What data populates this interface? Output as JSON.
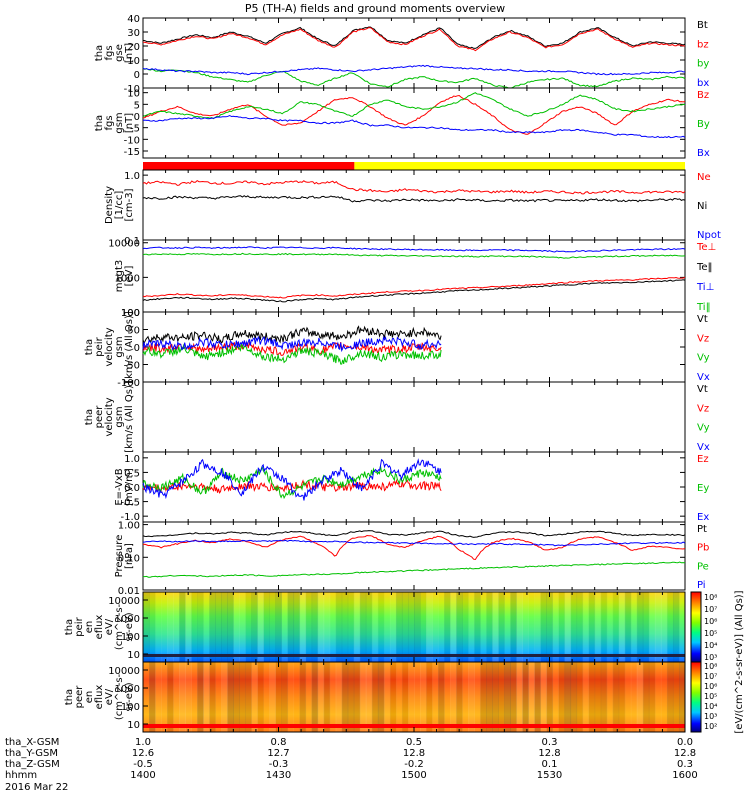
{
  "title": "P5 (TH-A) fields and ground moments overview",
  "date_label": "2016 Mar 22",
  "chart_data": [
    {
      "type": "line",
      "panel": "fgs_btotal",
      "ylabel": [
        "tha",
        "fgs",
        "gse",
        "[nT]"
      ],
      "ylim": [
        -10,
        40
      ],
      "yticks": [
        "40",
        "30",
        "20",
        "10",
        "0",
        "-10"
      ],
      "series": [
        {
          "name": "Bt",
          "color": "#000000",
          "values": [
            24,
            22,
            25,
            28,
            26,
            30,
            27,
            22,
            29,
            33,
            25,
            20,
            31,
            34,
            24,
            22,
            28,
            33,
            21,
            18,
            26,
            31,
            27,
            20,
            22,
            30,
            33,
            26,
            20,
            23,
            22,
            21
          ]
        },
        {
          "name": "bz",
          "color": "#ff0000",
          "values": [
            23,
            21,
            24,
            27,
            25,
            29,
            26,
            21,
            28,
            32,
            24,
            19,
            30,
            33,
            23,
            21,
            27,
            32,
            20,
            17,
            25,
            30,
            26,
            19,
            21,
            29,
            32,
            25,
            19,
            22,
            21,
            20
          ]
        },
        {
          "name": "by",
          "color": "#00c000",
          "values": [
            4,
            2,
            3,
            1,
            -2,
            -4,
            -6,
            -1,
            2,
            -5,
            -8,
            -3,
            1,
            -7,
            -9,
            -4,
            -2,
            -5,
            -6,
            -3,
            -8,
            -10,
            -6,
            -4,
            -3,
            -8,
            -9,
            -5,
            -3,
            -4,
            -2,
            -3
          ]
        },
        {
          "name": "bx",
          "color": "#0000ff",
          "values": [
            4,
            3,
            2,
            2,
            1,
            1,
            0,
            1,
            2,
            3,
            4,
            3,
            2,
            3,
            4,
            5,
            6,
            5,
            4,
            4,
            3,
            3,
            2,
            2,
            2,
            1,
            0,
            0,
            0,
            1,
            1,
            2
          ]
        }
      ]
    },
    {
      "type": "line",
      "panel": "fgs_gsm",
      "ylabel": [
        "tha",
        "fgs",
        "gsm",
        "[nT]"
      ],
      "ylim": [
        -18,
        12
      ],
      "yticks": [
        "10",
        "5",
        "0",
        "-5",
        "-10",
        "-15"
      ],
      "series": [
        {
          "name": "Bz",
          "color": "#ff0000",
          "values": [
            -1,
            2,
            4,
            1,
            0,
            3,
            5,
            0,
            -4,
            -3,
            2,
            7,
            8,
            4,
            -1,
            -4,
            0,
            6,
            9,
            5,
            0,
            -6,
            -8,
            -3,
            2,
            4,
            1,
            -4,
            2,
            5,
            7,
            6
          ]
        },
        {
          "name": "By",
          "color": "#00c000",
          "values": [
            0,
            2,
            1,
            0,
            -1,
            2,
            4,
            3,
            1,
            6,
            5,
            2,
            0,
            5,
            7,
            4,
            3,
            4,
            6,
            10,
            7,
            3,
            0,
            2,
            5,
            9,
            7,
            3,
            2,
            3,
            4,
            5
          ]
        },
        {
          "name": "Bx",
          "color": "#0000ff",
          "values": [
            -2,
            -2,
            -1,
            -1,
            -1,
            0,
            -1,
            -1,
            -2,
            -2,
            -3,
            -3,
            -2,
            -4,
            -4,
            -5,
            -5,
            -5,
            -6,
            -6,
            -6,
            -7,
            -7,
            -7,
            -6,
            -6,
            -7,
            -8,
            -8,
            -9,
            -9,
            -9
          ]
        }
      ]
    },
    {
      "type": "bar",
      "panel": "region_bar",
      "segments": [
        {
          "from": 0.0,
          "to": 0.39,
          "color": "#ff0000"
        },
        {
          "from": 0.39,
          "to": 1.0,
          "color": "#ffff00"
        }
      ]
    },
    {
      "type": "line",
      "panel": "density",
      "ylabel": [
        "Density",
        "[1/cc]",
        "[cm-3]"
      ],
      "yscale": "log",
      "ylim": [
        0.1,
        1.2
      ],
      "yticks": [
        "1.0",
        "0.1"
      ],
      "series": [
        {
          "name": "Ne",
          "color": "#ff0000",
          "values": [
            0.75,
            0.78,
            0.72,
            0.8,
            0.76,
            0.74,
            0.79,
            0.73,
            0.77,
            0.8,
            0.75,
            0.78,
            0.6,
            0.58,
            0.55,
            0.6,
            0.57,
            0.55,
            0.58,
            0.56,
            0.55,
            0.57,
            0.54,
            0.56,
            0.55,
            0.53,
            0.55,
            0.56,
            0.54,
            0.55,
            0.55,
            0.55
          ]
        },
        {
          "name": "Ni",
          "color": "#000000",
          "values": [
            0.45,
            0.44,
            0.46,
            0.45,
            0.44,
            0.46,
            0.47,
            0.45,
            0.46,
            0.45,
            0.46,
            0.47,
            0.4,
            0.41,
            0.4,
            0.42,
            0.41,
            0.4,
            0.42,
            0.41,
            0.4,
            0.41,
            0.4,
            0.41,
            0.4,
            0.41,
            0.42,
            0.41,
            0.4,
            0.41,
            0.42,
            0.42
          ]
        },
        {
          "name": "Npot",
          "color": "#0000ff",
          "values": []
        }
      ]
    },
    {
      "type": "line",
      "panel": "temperature",
      "ylabel": [
        "magt3",
        "[eV]"
      ],
      "yscale": "log",
      "ylim": [
        100,
        12000
      ],
      "yticks": [
        "10000",
        "1000",
        "100"
      ],
      "series": [
        {
          "name": "Te⊥",
          "color": "#ff0000",
          "values": [
            280,
            300,
            330,
            310,
            290,
            320,
            300,
            280,
            260,
            300,
            310,
            290,
            320,
            350,
            380,
            400,
            420,
            450,
            480,
            500,
            530,
            560,
            600,
            650,
            700,
            750,
            800,
            820,
            850,
            900,
            950,
            980
          ]
        },
        {
          "name": "Te‖",
          "color": "#000000",
          "values": [
            220,
            240,
            260,
            250,
            230,
            250,
            240,
            220,
            200,
            230,
            240,
            230,
            260,
            290,
            310,
            330,
            350,
            380,
            410,
            430,
            460,
            490,
            520,
            560,
            600,
            640,
            680,
            700,
            720,
            760,
            800,
            830
          ]
        },
        {
          "name": "Ti⊥",
          "color": "#0000ff",
          "values": [
            7000,
            7200,
            7100,
            7300,
            7000,
            7200,
            7400,
            7100,
            7300,
            7200,
            7000,
            7200,
            6800,
            6600,
            6500,
            6400,
            6300,
            6200,
            6100,
            6000,
            6200,
            6100,
            6000,
            5800,
            5500,
            5700,
            5900,
            6100,
            6300,
            6400,
            6500,
            6600
          ]
        },
        {
          "name": "Ti‖",
          "color": "#00c000",
          "values": [
            4600,
            4700,
            4650,
            4750,
            4600,
            4700,
            4800,
            4650,
            4700,
            4650,
            4600,
            4700,
            4400,
            4300,
            4250,
            4200,
            4150,
            4100,
            4050,
            4000,
            4100,
            4050,
            4000,
            3900,
            3700,
            3800,
            3950,
            4050,
            4150,
            4200,
            4250,
            4300
          ]
        }
      ]
    },
    {
      "type": "line",
      "panel": "peir_velocity",
      "ylabel": [
        "tha",
        "peir",
        "velocity",
        "gsm",
        "[km/s (All Qs)]"
      ],
      "ylim": [
        -100,
        100
      ],
      "yticks": [
        "100",
        "50",
        "0",
        "-50",
        "-100"
      ],
      "x_end": 0.55,
      "series": [
        {
          "name": "Vt",
          "color": "#000000",
          "values": [
            20,
            30,
            25,
            35,
            20,
            40,
            30,
            25,
            45,
            35,
            30,
            50,
            40,
            35,
            45,
            30
          ]
        },
        {
          "name": "Vz",
          "color": "#ff0000",
          "values": [
            0,
            -5,
            5,
            -10,
            0,
            5,
            -5,
            -15,
            0,
            -10,
            5,
            0,
            -10,
            -5,
            0,
            -5
          ]
        },
        {
          "name": "Vy",
          "color": "#00c000",
          "values": [
            -10,
            -20,
            -5,
            -30,
            -15,
            0,
            -25,
            -35,
            -10,
            -20,
            -40,
            -15,
            -30,
            -20,
            -25,
            -20
          ]
        },
        {
          "name": "Vx",
          "color": "#0000ff",
          "values": [
            5,
            10,
            0,
            15,
            5,
            10,
            20,
            5,
            10,
            15,
            0,
            10,
            20,
            15,
            5,
            10
          ]
        }
      ]
    },
    {
      "type": "line",
      "panel": "peer_velocity",
      "ylabel": [
        "tha",
        "peer",
        "velocity",
        "gsm",
        "[km/s (All Qs)]"
      ],
      "series": [
        {
          "name": "Vt",
          "color": "#000000",
          "values": []
        },
        {
          "name": "Vz",
          "color": "#ff0000",
          "values": []
        },
        {
          "name": "Vy",
          "color": "#00c000",
          "values": []
        },
        {
          "name": "Vx",
          "color": "#0000ff",
          "values": []
        }
      ]
    },
    {
      "type": "line",
      "panel": "efield",
      "ylabel": [
        "E=-VxB",
        "[mV/m]"
      ],
      "ylim": [
        -1.2,
        1.2
      ],
      "yticks": [
        "1.0",
        "0.5",
        "0.0",
        "-0.5",
        "-1.0"
      ],
      "x_end": 0.55,
      "series": [
        {
          "name": "Ez",
          "color": "#ff0000",
          "values": [
            0.0,
            -0.05,
            0.05,
            0.0,
            -0.1,
            0.05,
            0.0,
            -0.05,
            0.1,
            0.0,
            -0.05,
            0.05,
            0.0,
            0.1,
            0.05,
            0.0
          ]
        },
        {
          "name": "Ey",
          "color": "#00c000",
          "values": [
            0.1,
            0.0,
            0.3,
            -0.2,
            0.5,
            0.2,
            0.6,
            -0.3,
            0.0,
            0.3,
            0.1,
            0.4,
            0.6,
            0.2,
            0.5,
            0.3
          ]
        },
        {
          "name": "Ex",
          "color": "#0000ff",
          "values": [
            0.0,
            -0.3,
            0.2,
            0.8,
            0.5,
            -0.2,
            0.7,
            0.3,
            -0.4,
            0.2,
            0.6,
            -0.1,
            0.8,
            0.4,
            0.9,
            0.5
          ]
        }
      ]
    },
    {
      "type": "line",
      "panel": "pressure",
      "ylabel": [
        "Pressure",
        "[nPa]"
      ],
      "yscale": "log",
      "ylim": [
        0.01,
        1.2
      ],
      "yticks": [
        "1.00",
        "0.10",
        "0.01"
      ],
      "series": [
        {
          "name": "Pt",
          "color": "#000000",
          "values": [
            0.45,
            0.44,
            0.5,
            0.55,
            0.52,
            0.58,
            0.55,
            0.48,
            0.58,
            0.62,
            0.52,
            0.45,
            0.6,
            0.64,
            0.5,
            0.48,
            0.56,
            0.62,
            0.46,
            0.42,
            0.54,
            0.6,
            0.56,
            0.46,
            0.5,
            0.6,
            0.62,
            0.54,
            0.46,
            0.5,
            0.49,
            0.48
          ]
        },
        {
          "name": "Pb",
          "color": "#ff0000",
          "values": [
            0.25,
            0.2,
            0.26,
            0.32,
            0.28,
            0.36,
            0.3,
            0.2,
            0.34,
            0.44,
            0.25,
            0.1,
            0.38,
            0.46,
            0.24,
            0.2,
            0.32,
            0.44,
            0.18,
            0.08,
            0.28,
            0.38,
            0.3,
            0.16,
            0.2,
            0.36,
            0.42,
            0.28,
            0.16,
            0.22,
            0.2,
            0.18
          ]
        },
        {
          "name": "Pe",
          "color": "#00c000",
          "values": [
            0.025,
            0.026,
            0.028,
            0.027,
            0.026,
            0.028,
            0.029,
            0.027,
            0.028,
            0.029,
            0.03,
            0.031,
            0.033,
            0.035,
            0.037,
            0.038,
            0.04,
            0.042,
            0.044,
            0.046,
            0.048,
            0.05,
            0.052,
            0.054,
            0.056,
            0.058,
            0.06,
            0.062,
            0.064,
            0.066,
            0.068,
            0.07
          ]
        },
        {
          "name": "Pi",
          "color": "#0000ff",
          "values": [
            0.3,
            0.31,
            0.3,
            0.32,
            0.3,
            0.31,
            0.32,
            0.31,
            0.32,
            0.31,
            0.3,
            0.31,
            0.29,
            0.28,
            0.28,
            0.27,
            0.27,
            0.26,
            0.26,
            0.25,
            0.26,
            0.25,
            0.25,
            0.24,
            0.23,
            0.24,
            0.25,
            0.26,
            0.27,
            0.27,
            0.28,
            0.28
          ]
        }
      ]
    },
    {
      "type": "heatmap",
      "panel": "peir_spectrogram",
      "ylabel": [
        "tha",
        "peir",
        "en",
        "eflux",
        "eV/",
        "(cm^2-s-",
        "sr-eV)"
      ],
      "yscale": "log",
      "yticks": [
        "10000",
        "1000",
        "100",
        "10"
      ]
    },
    {
      "type": "heatmap",
      "panel": "peer_spectrogram",
      "ylabel": [
        "tha",
        "peer",
        "en",
        "eflux",
        "eV/",
        "(cm^2-s-",
        "sr-eV)"
      ],
      "yscale": "log",
      "yticks": [
        "10000",
        "1000",
        "100",
        "10"
      ]
    }
  ],
  "colorbar": {
    "label": "[eV/(cm^2-s-sr-eV)] (All Qs)]",
    "ticks": [
      "10⁸",
      "10⁷",
      "10⁶",
      "10⁵",
      "10⁴",
      "10³"
    ],
    "ticks_lower": [
      "10⁸",
      "10⁷",
      "10⁶",
      "10⁵",
      "10⁴",
      "10³",
      "10²"
    ]
  },
  "xaxis": {
    "rows": [
      {
        "label": "tha_X-GSM",
        "values": [
          "1.0",
          "0.8",
          "0.5",
          "0.3",
          "0.0"
        ]
      },
      {
        "label": "tha_Y-GSM",
        "values": [
          "12.6",
          "12.7",
          "12.8",
          "12.8",
          "12.8"
        ]
      },
      {
        "label": "tha_Z-GSM",
        "values": [
          "-0.5",
          "-0.3",
          "-0.2",
          "0.1",
          "0.3"
        ]
      },
      {
        "label": "hhmm",
        "values": [
          "1400",
          "1430",
          "1500",
          "1530",
          "1600"
        ]
      }
    ]
  }
}
